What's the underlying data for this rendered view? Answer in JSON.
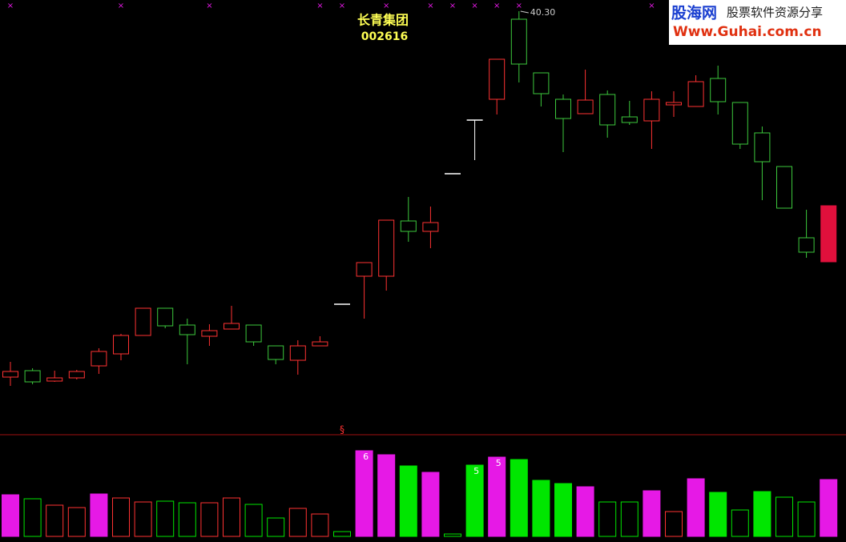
{
  "chart_data": {
    "type": "candlestick",
    "title": "长青集团",
    "subtitle": "002616",
    "peak_label": {
      "value": 40.3,
      "label": "40.30",
      "index": 23
    },
    "ylim": [
      14,
      41
    ],
    "open": [
      17.45,
      17.85,
      17.2,
      17.4,
      18.15,
      18.9,
      20.05,
      21.75,
      20.7,
      20.0,
      20.45,
      20.7,
      19.4,
      18.5,
      19.4,
      22.0,
      23.75,
      23.75,
      27.2,
      26.55,
      30.15,
      33.5,
      34.8,
      39.8,
      36.45,
      34.8,
      33.9,
      35.1,
      33.7,
      33.45,
      34.45,
      34.35,
      36.1,
      34.6,
      32.7,
      30.6,
      26.15,
      24.65
    ],
    "high": [
      18.4,
      18.0,
      17.85,
      17.9,
      19.25,
      20.15,
      21.75,
      21.75,
      21.1,
      20.75,
      21.9,
      20.7,
      19.4,
      19.75,
      20.0,
      22.0,
      24.6,
      27.25,
      28.7,
      28.1,
      30.15,
      33.5,
      37.3,
      40.3,
      36.45,
      35.1,
      36.65,
      35.35,
      34.7,
      35.3,
      35.3,
      36.3,
      36.9,
      34.6,
      33.1,
      30.6,
      27.9,
      28.15
    ],
    "low": [
      16.9,
      17.0,
      17.15,
      17.3,
      17.65,
      18.5,
      20.05,
      20.5,
      18.25,
      19.4,
      20.45,
      19.4,
      18.25,
      17.6,
      19.4,
      22.0,
      21.1,
      22.85,
      25.9,
      25.5,
      30.15,
      31.0,
      33.85,
      35.85,
      34.35,
      31.5,
      33.9,
      32.4,
      33.2,
      31.7,
      33.7,
      34.35,
      33.85,
      31.7,
      28.5,
      28.0,
      24.9,
      24.65
    ],
    "close": [
      17.8,
      17.15,
      17.4,
      17.8,
      19.05,
      20.05,
      21.75,
      20.65,
      20.1,
      20.35,
      20.8,
      19.65,
      18.55,
      19.4,
      19.65,
      22.0,
      24.6,
      27.25,
      26.55,
      27.1,
      30.15,
      33.5,
      37.3,
      37.0,
      35.15,
      33.6,
      34.75,
      33.2,
      33.35,
      34.8,
      34.6,
      35.9,
      34.65,
      32.0,
      30.9,
      28.0,
      25.25,
      28.15
    ],
    "candle_colors": [
      "#ff3232",
      "#3cc83c",
      "#ff3232",
      "#ff3232",
      "#ff3232",
      "#ff3232",
      "#ff3232",
      "#3cc83c",
      "#3cc83c",
      "#ff3232",
      "#ff3232",
      "#3cc83c",
      "#3cc83c",
      "#ff3232",
      "#ff3232",
      "#ffffff",
      "#ff3232",
      "#ff3232",
      "#3cc83c",
      "#ff3232",
      "#ffffff",
      "#ffffff",
      "#ff3232",
      "#3cc83c",
      "#3cc83c",
      "#3cc83c",
      "#ff3232",
      "#3cc83c",
      "#3cc83c",
      "#ff3232",
      "#ff3232",
      "#ff3232",
      "#3cc83c",
      "#3cc83c",
      "#3cc83c",
      "#3cc83c",
      "#3cc83c",
      "#e0103c"
    ],
    "candle_filled": [
      false,
      false,
      false,
      false,
      false,
      false,
      false,
      false,
      false,
      false,
      false,
      false,
      false,
      false,
      false,
      false,
      false,
      false,
      false,
      false,
      false,
      false,
      false,
      false,
      false,
      false,
      false,
      false,
      false,
      false,
      false,
      false,
      false,
      false,
      false,
      false,
      false,
      true
    ],
    "volume": {
      "ylim": [
        0,
        125
      ],
      "values": [
        52,
        47,
        39,
        36,
        53,
        48,
        43,
        44,
        42,
        42,
        48,
        40,
        23,
        35,
        28,
        6,
        107,
        102,
        88,
        80,
        3,
        89,
        99,
        96,
        70,
        66,
        62,
        43,
        43,
        57,
        31,
        72,
        55,
        33,
        56,
        49,
        43,
        71
      ],
      "colors": [
        "#e619e6",
        "#00e600",
        "#ff3232",
        "#ff3232",
        "#e619e6",
        "#ff3232",
        "#ff3232",
        "#00e600",
        "#00e600",
        "#ff3232",
        "#ff3232",
        "#00e600",
        "#00e600",
        "#ff3232",
        "#ff3232",
        "#00e600",
        "#e619e6",
        "#e619e6",
        "#00e600",
        "#e619e6",
        "#00e600",
        "#00e600",
        "#e619e6",
        "#00e600",
        "#00e600",
        "#00e600",
        "#e619e6",
        "#00e600",
        "#00e600",
        "#e619e6",
        "#ff3232",
        "#e619e6",
        "#00e600",
        "#00e600",
        "#00e600",
        "#00e600",
        "#00e600",
        "#e619e6"
      ],
      "filled": [
        true,
        false,
        false,
        false,
        true,
        false,
        false,
        false,
        false,
        false,
        false,
        false,
        false,
        false,
        false,
        false,
        true,
        true,
        true,
        true,
        false,
        true,
        true,
        true,
        true,
        true,
        true,
        false,
        false,
        true,
        false,
        true,
        true,
        false,
        true,
        false,
        false,
        true
      ],
      "annotations": [
        {
          "text": "6",
          "index": 16
        },
        {
          "text": "5",
          "index": 21
        },
        {
          "text": "5",
          "index": 22
        }
      ]
    },
    "markers": {
      "symbol": "×",
      "color": "#e619e6",
      "indices": [
        0,
        5,
        9,
        14,
        15,
        17,
        19,
        20,
        21,
        22,
        23,
        29,
        30
      ]
    },
    "divider_symbol": {
      "text": "§",
      "index": 15
    },
    "watermark": {
      "brand": "股海网",
      "slogan": "股票软件资源分享",
      "url": "Www.Guhai.com.cn"
    }
  }
}
